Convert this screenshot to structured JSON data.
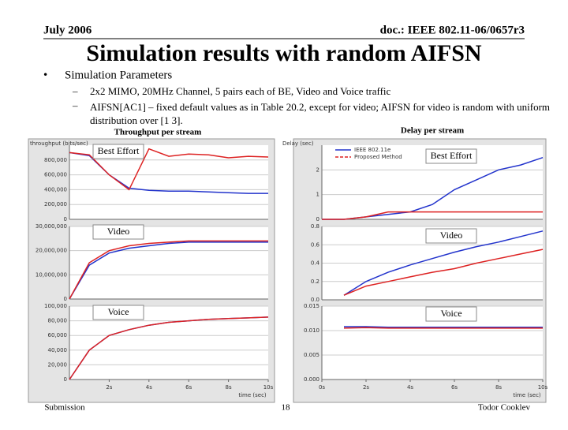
{
  "header": {
    "date": "July 2006",
    "doc": "doc.: IEEE 802.11-06/0657r3"
  },
  "title": "Simulation results with random AIFSN",
  "bullet": "Simulation Parameters",
  "sub_bullets": [
    "2x2 MIMO, 20MHz Channel, 5 pairs each of BE, Video and Voice traffic",
    "AIFSN[AC1] – fixed default values as in Table 20.2, except for video; AIFSN for video is random with uniform distribution over [1 3]."
  ],
  "captions": {
    "left": "Throughput per stream",
    "right": "Delay per stream"
  },
  "footer": {
    "left": "Submission",
    "page": "18",
    "author": "Todor Cooklev"
  },
  "panels": [
    {
      "type": "line",
      "label": "Best Effort",
      "ylabel": "throughput (bits/sec)",
      "xlim": [
        0,
        10
      ],
      "ylim": [
        0,
        1000000
      ],
      "yticks": [
        0,
        {
          "value": 200000,
          "label": "200,000"
        },
        {
          "value": 400000,
          "label": "400,000"
        },
        {
          "value": 600000,
          "label": "600,000"
        },
        {
          "value": 800000,
          "label": "800,000"
        }
      ],
      "x": [
        0,
        1,
        2,
        3,
        4,
        5,
        6,
        7,
        8,
        9,
        10
      ],
      "series": [
        {
          "color": "#2233cc",
          "values": [
            900000,
            860000,
            600000,
            420000,
            390000,
            380000,
            380000,
            370000,
            360000,
            350000,
            350000
          ]
        },
        {
          "color": "#dd2222",
          "values": [
            900000,
            870000,
            600000,
            400000,
            950000,
            850000,
            880000,
            870000,
            830000,
            850000,
            840000
          ]
        }
      ]
    },
    {
      "type": "line",
      "label": "Video",
      "xlim": [
        0,
        10
      ],
      "ylim": [
        0,
        30000000
      ],
      "yticks": [
        0,
        {
          "value": 10000000,
          "label": "10,000,000"
        },
        {
          "value": 20000000,
          "label": "20,000,000"
        },
        {
          "value": 30000000,
          "label": "30,000,000"
        }
      ],
      "x": [
        0,
        1,
        2,
        3,
        4,
        5,
        6,
        7,
        8,
        9,
        10
      ],
      "series": [
        {
          "color": "#2233cc",
          "values": [
            0,
            14000000,
            19000000,
            21000000,
            22000000,
            23000000,
            23500000,
            23500000,
            23500000,
            23500000,
            23500000
          ]
        },
        {
          "color": "#dd2222",
          "values": [
            0,
            15000000,
            20000000,
            22000000,
            23000000,
            23500000,
            24000000,
            24000000,
            24000000,
            24000000,
            24000000
          ]
        }
      ]
    },
    {
      "type": "line",
      "label": "Voice",
      "xlabel": "time (sec)",
      "xlim": [
        0,
        10
      ],
      "ylim": [
        0,
        100000
      ],
      "yticks": [
        0,
        {
          "value": 20000,
          "label": "20,000"
        },
        {
          "value": 40000,
          "label": "40,000"
        },
        {
          "value": 60000,
          "label": "60,000"
        },
        {
          "value": 80000,
          "label": "80,000"
        },
        {
          "value": 100000,
          "label": "100,000"
        }
      ],
      "xticks": [
        {
          "value": 2,
          "label": "2s"
        },
        {
          "value": 4,
          "label": "4s"
        },
        {
          "value": 6,
          "label": "6s"
        },
        {
          "value": 8,
          "label": "8s"
        },
        {
          "value": 10,
          "label": "10s"
        }
      ],
      "x": [
        0,
        1,
        2,
        3,
        4,
        5,
        6,
        7,
        8,
        9,
        10
      ],
      "series": [
        {
          "color": "#2233cc",
          "values": [
            0,
            40000,
            60000,
            68000,
            74000,
            78000,
            80000,
            82000,
            83000,
            84000,
            85000
          ]
        },
        {
          "color": "#dd2222",
          "values": [
            0,
            40000,
            60000,
            68000,
            74000,
            78000,
            80000,
            82000,
            83000,
            84000,
            85000
          ]
        }
      ]
    },
    {
      "type": "line",
      "label": "Best Effort",
      "ylabel": "Delay (sec)",
      "xlim": [
        0,
        10
      ],
      "ylim": [
        0,
        3
      ],
      "yticks": [
        0,
        1,
        2
      ],
      "x": [
        0,
        1,
        2,
        3,
        4,
        5,
        6,
        7,
        8,
        9,
        10
      ],
      "series": [
        {
          "name": "IEEE 802.11e",
          "color": "#2233cc",
          "values": [
            0,
            0,
            0.1,
            0.2,
            0.3,
            0.6,
            1.2,
            1.6,
            2.0,
            2.2,
            2.5
          ]
        },
        {
          "name": "Proposed Method",
          "color": "#dd2222",
          "values": [
            0,
            0,
            0.1,
            0.3,
            0.3,
            0.3,
            0.3,
            0.3,
            0.3,
            0.3,
            0.3
          ]
        }
      ]
    },
    {
      "type": "line",
      "label": "Video",
      "xlim": [
        0,
        10
      ],
      "ylim": [
        0,
        0.8
      ],
      "yticks": [
        {
          "value": 0,
          "label": "0.0"
        },
        0.2,
        0.4,
        0.6,
        0.8
      ],
      "x": [
        0,
        1,
        2,
        3,
        4,
        5,
        6,
        7,
        8,
        9,
        10
      ],
      "series": [
        {
          "color": "#2233cc",
          "values": [
            null,
            0.05,
            0.2,
            0.3,
            0.38,
            0.45,
            0.52,
            0.58,
            0.63,
            0.69,
            0.75
          ]
        },
        {
          "color": "#dd2222",
          "values": [
            null,
            0.05,
            0.15,
            0.2,
            0.25,
            0.3,
            0.34,
            0.4,
            0.45,
            0.5,
            0.55
          ]
        }
      ]
    },
    {
      "type": "line",
      "label": "Voice",
      "xlabel": "time (sec)",
      "xlim": [
        0,
        10
      ],
      "ylim": [
        0,
        0.015
      ],
      "yticks": [
        {
          "value": 0,
          "label": "0.000"
        },
        0.005,
        {
          "value": 0.01,
          "label": "0.010"
        },
        0.015
      ],
      "xticks": [
        {
          "value": 0,
          "label": "0s"
        },
        {
          "value": 2,
          "label": "2s"
        },
        {
          "value": 4,
          "label": "4s"
        },
        {
          "value": 6,
          "label": "6s"
        },
        {
          "value": 8,
          "label": "8s"
        },
        {
          "value": 10,
          "label": "10s"
        }
      ],
      "x": [
        0,
        1,
        2,
        3,
        4,
        5,
        6,
        7,
        8,
        9,
        10
      ],
      "series": [
        {
          "color": "#2233cc",
          "values": [
            null,
            0.0108,
            0.0108,
            0.0107,
            0.0107,
            0.0107,
            0.0107,
            0.0107,
            0.0107,
            0.0107,
            0.0107
          ]
        },
        {
          "color": "#dd2222",
          "values": [
            null,
            0.0105,
            0.0106,
            0.0105,
            0.0105,
            0.0105,
            0.0105,
            0.0105,
            0.0105,
            0.0105,
            0.0105
          ]
        }
      ]
    }
  ]
}
